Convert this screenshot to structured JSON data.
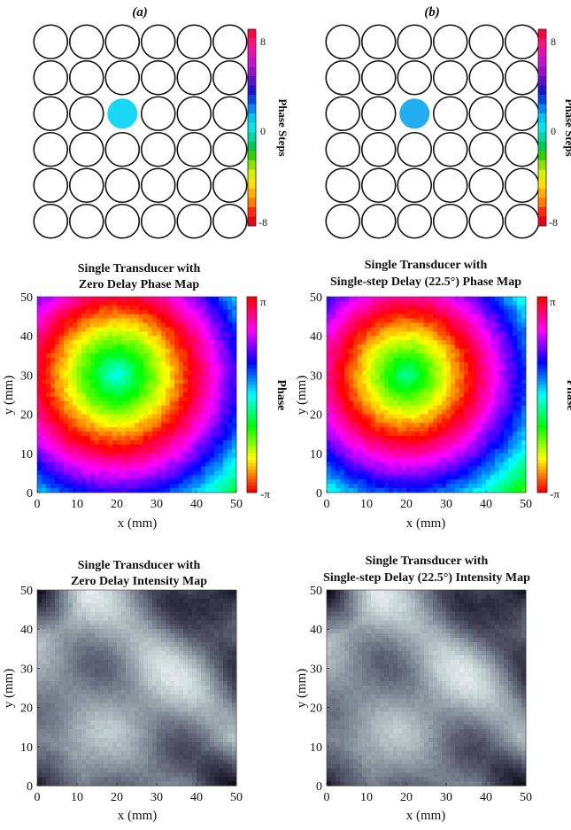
{
  "panel_labels": [
    "(a)",
    "(b)"
  ],
  "transducer_panels": [
    {
      "rows": 6,
      "cols": 6,
      "active": {
        "row": 3,
        "col": 3
      },
      "active_color": "#19d8f5",
      "colorbar_label": "Phase Steps",
      "ticks": [
        "8",
        "0",
        "-8"
      ]
    },
    {
      "rows": 6,
      "cols": 6,
      "active": {
        "row": 3,
        "col": 3
      },
      "active_color": "#22aef0",
      "colorbar_label": "Phase Steps",
      "ticks": [
        "8",
        "0",
        "-8"
      ]
    }
  ],
  "colors": {
    "step_scale": [
      "#e8001a",
      "#ff2a10",
      "#ff7a00",
      "#ffb000",
      "#ffe000",
      "#d7ef00",
      "#8fe000",
      "#33d000",
      "#00c850",
      "#00d8a0",
      "#00e8e8",
      "#00c8f0",
      "#0088f0",
      "#0048e0",
      "#2010d0",
      "#6010c8",
      "#9a10c8",
      "#c810d0",
      "#e810b0",
      "#ff1080",
      "#ff0040"
    ],
    "phase_scale": [
      "#ff0000",
      "#ff8000",
      "#ffff00",
      "#80ff00",
      "#00ff00",
      "#00ff80",
      "#00ffff",
      "#0080ff",
      "#0000ff",
      "#8000ff",
      "#ff00ff",
      "#ff0080",
      "#ff0000"
    ],
    "intensity_scale": [
      "#000000",
      "#2a2a3c",
      "#5a5f70",
      "#8f9aa3",
      "#c5d2d4",
      "#ffffff"
    ]
  },
  "chart_data": [
    {
      "type": "heatmap",
      "title": [
        "Single Transducer with",
        "Zero Delay Phase Map"
      ],
      "xlabel": "x (mm)",
      "ylabel": "y (mm)",
      "xlim": [
        0,
        50
      ],
      "ylim": [
        0,
        50
      ],
      "xticks": [
        "0",
        "10",
        "20",
        "30",
        "40",
        "50"
      ],
      "yticks": [
        "0",
        "10",
        "20",
        "30",
        "40",
        "50"
      ],
      "colorbar": {
        "label": "Phase",
        "ticks": [
          "π",
          "-π"
        ],
        "scale": "phase"
      },
      "source_center": [
        20,
        30
      ],
      "phase_at_center": 0
    },
    {
      "type": "heatmap",
      "title": [
        "Single Transducer with",
        "Single-step Delay (22.5°) Phase Map"
      ],
      "xlabel": "x (mm)",
      "ylabel": "y (mm)",
      "xlim": [
        0,
        50
      ],
      "ylim": [
        0,
        50
      ],
      "xticks": [
        "0",
        "10",
        "20",
        "30",
        "40",
        "50"
      ],
      "yticks": [
        "0",
        "10",
        "20",
        "30",
        "40",
        "50"
      ],
      "colorbar": {
        "label": "Phase",
        "ticks": [
          "π",
          "-π"
        ],
        "scale": "phase"
      },
      "source_center": [
        20,
        30
      ],
      "phase_at_center": 22.5
    },
    {
      "type": "heatmap",
      "title": [
        "Single Transducer with",
        "Zero Delay Intensity Map"
      ],
      "xlabel": "x (mm)",
      "ylabel": "y (mm)",
      "xlim": [
        0,
        50
      ],
      "ylim": [
        0,
        50
      ],
      "xticks": [
        "0",
        "10",
        "20",
        "30",
        "40",
        "50"
      ],
      "yticks": [
        "0",
        "10",
        "20",
        "30",
        "40",
        "50"
      ],
      "scale": "intensity"
    },
    {
      "type": "heatmap",
      "title": [
        "Single Transducer with",
        "Single-step Delay (22.5°) Intensity Map"
      ],
      "xlabel": "x (mm)",
      "ylabel": "y (mm)",
      "xlim": [
        0,
        50
      ],
      "ylim": [
        0,
        50
      ],
      "xticks": [
        "0",
        "10",
        "20",
        "30",
        "40",
        "50"
      ],
      "yticks": [
        "0",
        "10",
        "20",
        "30",
        "40",
        "50"
      ],
      "scale": "intensity"
    }
  ]
}
